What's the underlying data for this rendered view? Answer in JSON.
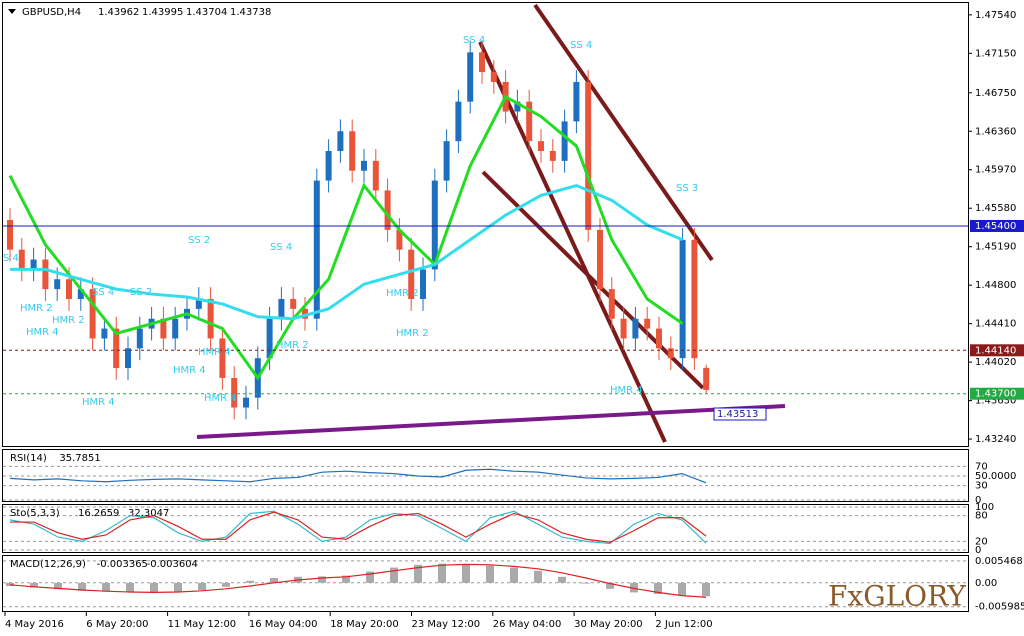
{
  "chart_data": [
    {
      "type": "candlestick",
      "symbol": "GBPUSD,H4",
      "ohlc_header": [
        1.43962,
        1.43995,
        1.43704,
        1.43738
      ],
      "up_color": "#1e6fbf",
      "down_color": "#e8553a",
      "open": [
        1.4546,
        1.4516,
        1.4496,
        1.4506,
        1.4476,
        1.4486,
        1.4466,
        1.4476,
        1.4426,
        1.4436,
        1.4396,
        1.4416,
        1.4436,
        1.4446,
        1.4426,
        1.4446,
        1.4456,
        1.4466,
        1.4426,
        1.4386,
        1.4356,
        1.4366,
        1.4406,
        1.4446,
        1.4466,
        1.4456,
        1.4446,
        1.4586,
        1.4616,
        1.4636,
        1.4596,
        1.4606,
        1.4576,
        1.4536,
        1.4516,
        1.4466,
        1.4496,
        1.4586,
        1.4626,
        1.4666,
        1.4716,
        1.4696,
        1.4686,
        1.4656,
        1.4666,
        1.4626,
        1.4616,
        1.4606,
        1.4646,
        1.4686,
        1.4536,
        1.4476,
        1.4446,
        1.4426,
        1.4446,
        1.4436,
        1.4416,
        1.4406,
        1.4526,
        1.43962
      ],
      "high": [
        1.4558,
        1.4528,
        1.4518,
        1.4518,
        1.4498,
        1.4498,
        1.4488,
        1.4488,
        1.4448,
        1.4448,
        1.4428,
        1.4448,
        1.4458,
        1.4458,
        1.4458,
        1.4468,
        1.4478,
        1.4478,
        1.4438,
        1.4398,
        1.4378,
        1.4418,
        1.4458,
        1.4478,
        1.4478,
        1.4468,
        1.4598,
        1.4628,
        1.4648,
        1.4648,
        1.4618,
        1.4618,
        1.4588,
        1.4548,
        1.4528,
        1.4508,
        1.4598,
        1.4638,
        1.4678,
        1.4728,
        1.4728,
        1.4708,
        1.4698,
        1.4678,
        1.4678,
        1.4638,
        1.4628,
        1.4658,
        1.4698,
        1.4698,
        1.4548,
        1.4488,
        1.4458,
        1.4458,
        1.4458,
        1.4448,
        1.4428,
        1.4538,
        1.4538,
        1.43995
      ],
      "low": [
        1.4504,
        1.4484,
        1.4484,
        1.4464,
        1.4464,
        1.4454,
        1.4454,
        1.4414,
        1.4414,
        1.4384,
        1.4384,
        1.4404,
        1.4424,
        1.4414,
        1.4414,
        1.4434,
        1.4444,
        1.4414,
        1.4374,
        1.4344,
        1.4344,
        1.4354,
        1.4394,
        1.4434,
        1.4444,
        1.4434,
        1.4434,
        1.4574,
        1.4604,
        1.4584,
        1.4584,
        1.4564,
        1.4524,
        1.4504,
        1.4454,
        1.4454,
        1.4484,
        1.4574,
        1.4614,
        1.4654,
        1.4684,
        1.4674,
        1.4644,
        1.4644,
        1.4614,
        1.4604,
        1.4594,
        1.4594,
        1.4634,
        1.4524,
        1.4464,
        1.4434,
        1.4414,
        1.4414,
        1.4424,
        1.4404,
        1.4394,
        1.4394,
        1.4394,
        1.43704
      ],
      "close": [
        1.4516,
        1.4496,
        1.4506,
        1.4476,
        1.4486,
        1.4466,
        1.4476,
        1.4426,
        1.4436,
        1.4396,
        1.4416,
        1.4436,
        1.4446,
        1.4426,
        1.4446,
        1.4456,
        1.4466,
        1.4426,
        1.4386,
        1.4356,
        1.4366,
        1.4406,
        1.4446,
        1.4466,
        1.4456,
        1.4446,
        1.4586,
        1.4616,
        1.4636,
        1.4596,
        1.4606,
        1.4576,
        1.4536,
        1.4516,
        1.4466,
        1.4496,
        1.4586,
        1.4626,
        1.4666,
        1.4716,
        1.4696,
        1.4686,
        1.4656,
        1.4666,
        1.4626,
        1.4616,
        1.4606,
        1.4646,
        1.4686,
        1.4536,
        1.4476,
        1.4446,
        1.4426,
        1.4446,
        1.4436,
        1.4416,
        1.4406,
        1.4526,
        1.4406,
        1.43738
      ],
      "series": [
        {
          "color": "#22dd22",
          "x": [
            0,
            3,
            6,
            9,
            12,
            15,
            18,
            21,
            24,
            27,
            30,
            33,
            36,
            39,
            42,
            45,
            48,
            51,
            54,
            57
          ],
          "values": [
            1.4591,
            1.4521,
            1.4476,
            1.4431,
            1.4441,
            1.4451,
            1.4436,
            1.4386,
            1.4446,
            1.4486,
            1.4581,
            1.4536,
            1.4501,
            1.4601,
            1.4671,
            1.4651,
            1.4621,
            1.4526,
            1.4466,
            1.4441
          ]
        },
        {
          "color": "#33ddee",
          "x": [
            0,
            3,
            6,
            9,
            12,
            15,
            18,
            21,
            24,
            27,
            30,
            33,
            36,
            39,
            42,
            45,
            48,
            51,
            54,
            57
          ],
          "values": [
            1.4496,
            1.4496,
            1.4486,
            1.4476,
            1.4471,
            1.4468,
            1.4461,
            1.4448,
            1.4446,
            1.4456,
            1.4481,
            1.4491,
            1.4501,
            1.4526,
            1.4551,
            1.4571,
            1.4581,
            1.4566,
            1.4541,
            1.4526
          ]
        }
      ],
      "ylim": [
        1.4317,
        1.4766
      ],
      "yticks": [
        {
          "value": 1.4754,
          "label": "1.47540"
        },
        {
          "value": 1.4715,
          "label": "1.47150"
        },
        {
          "value": 1.4675,
          "label": "1.46750"
        },
        {
          "value": 1.4636,
          "label": "1.46360"
        },
        {
          "value": 1.4597,
          "label": "1.45970"
        },
        {
          "value": 1.4558,
          "label": "1.45580"
        },
        {
          "value": 1.4519,
          "label": "1.45190"
        },
        {
          "value": 1.448,
          "label": "1.44800"
        },
        {
          "value": 1.4441,
          "label": "1.44410"
        },
        {
          "value": 1.4402,
          "label": "1.44020"
        },
        {
          "value": 1.4363,
          "label": "1.43630"
        },
        {
          "value": 1.4324,
          "label": "1.43240"
        }
      ],
      "levels": [
        {
          "value": 1.454,
          "label": "1.45400",
          "color": "#1a1acc"
        },
        {
          "value": 1.4414,
          "label": "1.44140",
          "color": "#8b1a1a"
        },
        {
          "value": 1.437,
          "label": "1.43700",
          "color": "#22aa44"
        }
      ],
      "trendline_value": 1.43513,
      "annotations": [
        "SS 4",
        "SS 4",
        "SS 3",
        "SS 2",
        "SS 4",
        "SS 4",
        "SS 2",
        "HMR 2",
        "HMR 2",
        "HMR 4",
        "HMR 2",
        "HMR 2",
        "HMR 2",
        "HMR 4",
        "HMR 4",
        "HMR 4",
        "HMR 4",
        "HMR 4",
        "S 4"
      ],
      "annotation_color": "#33ccee"
    },
    {
      "type": "line",
      "label": "RSI(14)",
      "last": 35.7851,
      "ylim": [
        0,
        100
      ],
      "yticks": [
        0,
        30,
        {
          "value": 50,
          "label": "50.0000"
        },
        70
      ],
      "series": [
        {
          "color": "#1e6fbf",
          "values": [
            45,
            42,
            44,
            40,
            38,
            41,
            43,
            44,
            42,
            40,
            38,
            45,
            47,
            58,
            60,
            57,
            55,
            50,
            48,
            62,
            64,
            60,
            58,
            52,
            46,
            44,
            45,
            47,
            55,
            35.7851
          ]
        }
      ]
    },
    {
      "type": "line",
      "label": "Sto(5,3,3)",
      "last": [
        16.2659,
        32.3047
      ],
      "ylim": [
        0,
        100
      ],
      "yticks": [
        0,
        20,
        80,
        100
      ],
      "series": [
        {
          "color": "#33bbcc",
          "values": [
            70,
            60,
            30,
            20,
            45,
            80,
            75,
            40,
            20,
            30,
            85,
            90,
            60,
            20,
            30,
            70,
            85,
            80,
            50,
            20,
            75,
            90,
            60,
            30,
            20,
            15,
            60,
            85,
            70,
            16.2659
          ]
        },
        {
          "color": "#dd2222",
          "values": [
            65,
            65,
            40,
            25,
            35,
            70,
            80,
            55,
            25,
            25,
            70,
            88,
            70,
            30,
            25,
            55,
            80,
            85,
            60,
            30,
            60,
            85,
            70,
            40,
            25,
            18,
            45,
            75,
            75,
            32.3047
          ]
        }
      ]
    },
    {
      "type": "macd",
      "label": "MACD(12,26,9)",
      "last": [
        -0.003365,
        -0.003604
      ],
      "ylim": [
        -0.0068,
        0.0062
      ],
      "yticks": [
        0.005468,
        {
          "value": 0,
          "label": "0.00"
        },
        -0.005985
      ],
      "histogram_color": "#aaaaaa",
      "histogram": [
        -0.0008,
        -0.0012,
        -0.0016,
        -0.002,
        -0.0022,
        -0.0023,
        -0.0024,
        -0.0022,
        -0.0018,
        -0.001,
        0.0005,
        0.0012,
        0.0015,
        0.0016,
        0.0018,
        0.0028,
        0.0038,
        0.0045,
        0.0048,
        0.0046,
        0.0043,
        0.0038,
        0.003,
        0.0015,
        -0.0002,
        -0.0015,
        -0.0024,
        -0.0028,
        -0.0031,
        -0.003365
      ],
      "signal_color": "#dd2222",
      "signal": [
        -0.0005,
        -0.001,
        -0.0014,
        -0.0018,
        -0.0021,
        -0.0023,
        -0.0024,
        -0.0023,
        -0.002,
        -0.0015,
        -0.0008,
        0,
        0.0007,
        0.0012,
        0.0015,
        0.0022,
        0.003,
        0.0038,
        0.0044,
        0.0046,
        0.0045,
        0.0041,
        0.0035,
        0.0025,
        0.0012,
        -0.0002,
        -0.0014,
        -0.0024,
        -0.0032,
        -0.003604
      ]
    }
  ],
  "x_axis_labels": [
    "4 May 2016",
    "6 May 20:00",
    "11 May 12:00",
    "16 May 04:00",
    "18 May 20:00",
    "23 May 12:00",
    "26 May 04:00",
    "30 May 20:00",
    "2 Jun 12:00"
  ],
  "logo": "FxGLORY"
}
